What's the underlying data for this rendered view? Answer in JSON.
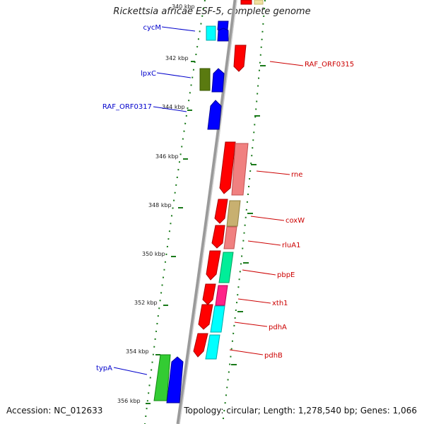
{
  "map": {
    "title": "Rickettsia africae ESF-5, complete genome",
    "accession": "Accession: NC_012633",
    "summary": "Topology: circular; Length: 1,278,540 bp; Genes: 1,066",
    "kbp_ticks": [
      "340 kbp",
      "342 kbp",
      "344 kbp",
      "346 kbp",
      "348 kbp",
      "350 kbp",
      "352 kbp",
      "354 kbp",
      "356 kbp"
    ],
    "colors": {
      "forward_label": "#0000cc",
      "reverse_label": "#cc0000",
      "backbone": "#888888",
      "tick": "#1a7a1a"
    }
  },
  "genes": {
    "cycM": "cycM",
    "lpxC": "lpxC",
    "RAF_ORF0317": "RAF_ORF0317",
    "typA": "typA",
    "RAF_ORF0315": "RAF_ORF0315",
    "rne": "rne",
    "coxW": "coxW",
    "rluA1": "rluA1",
    "pbpE": "pbpE",
    "xth1": "xth1",
    "pdhA": "pdhA",
    "pdhB": "pdhB"
  }
}
